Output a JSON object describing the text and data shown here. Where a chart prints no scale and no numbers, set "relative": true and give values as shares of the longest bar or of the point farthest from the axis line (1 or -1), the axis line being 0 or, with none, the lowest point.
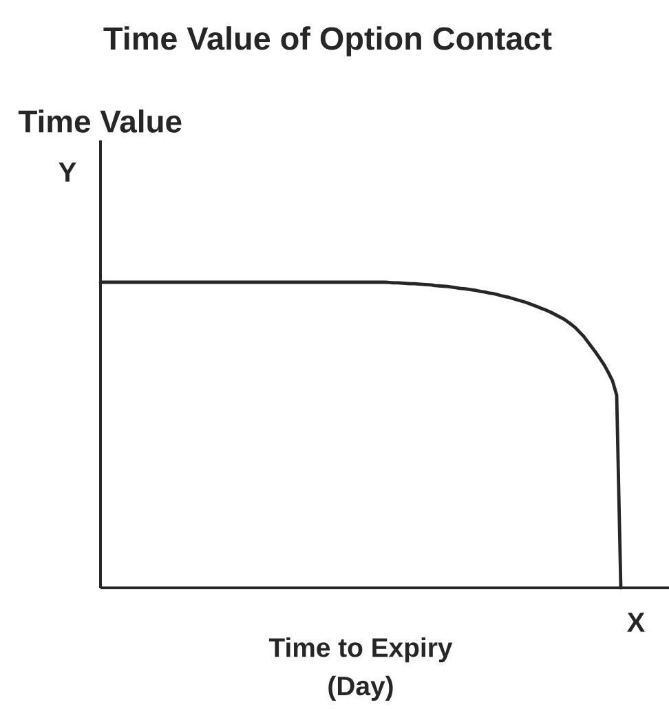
{
  "chart_data": {
    "type": "line",
    "title": "Time Value of Option Contact",
    "xlabel": "Time to Expiry (Day)",
    "annotations": [
      "Time Value",
      "Y",
      "X"
    ],
    "relative": true,
    "categories": [
      null,
      null,
      null,
      null,
      null,
      null,
      null,
      null,
      null,
      null,
      null,
      null,
      null,
      null,
      null,
      null,
      null,
      null,
      null,
      null,
      null,
      null,
      null,
      null,
      null,
      null,
      null,
      null,
      null,
      null,
      null,
      null,
      null,
      null,
      null,
      null,
      null,
      null,
      null,
      null,
      null,
      null,
      null,
      null,
      null,
      null,
      null,
      null,
      null,
      null,
      null,
      null,
      null,
      null,
      null,
      null,
      null,
      null,
      null,
      null,
      null,
      null,
      null,
      null,
      null,
      null,
      null,
      null,
      null,
      null,
      null,
      null,
      null,
      null,
      null,
      null,
      null,
      null,
      null,
      null,
      null,
      null,
      null,
      null,
      null,
      null,
      null,
      null,
      null,
      null,
      null,
      null,
      null,
      null,
      null,
      null,
      null,
      null,
      null,
      null,
      null,
      null,
      null,
      null,
      null,
      null,
      null,
      null,
      null,
      null,
      null,
      null,
      null,
      null,
      null,
      null,
      null,
      null,
      null,
      null,
      null,
      null,
      null,
      null,
      null,
      null,
      null
    ],
    "series": [
      {
        "color": "#262626",
        "values": [
          1,
          1,
          1,
          1,
          1,
          1,
          1,
          1,
          1,
          1,
          1,
          1,
          1,
          1,
          1,
          1,
          1,
          1,
          1,
          1,
          1,
          1,
          1,
          1,
          1,
          1,
          1,
          1,
          1,
          1,
          1,
          1,
          1,
          1,
          1,
          1,
          1,
          1,
          1,
          1,
          1,
          1,
          1,
          1,
          1,
          1,
          1,
          1,
          1,
          1,
          1,
          1,
          1,
          1,
          1,
          1,
          1,
          1,
          1,
          1,
          1,
          1,
          1,
          1,
          1,
          1,
          1,
          1,
          1,
          1,
          0.999,
          0.998,
          0.998,
          0.997,
          0.996,
          0.995,
          0.995,
          0.994,
          0.993,
          0.992,
          0.991,
          0.989,
          0.988,
          0.987,
          0.986,
          0.984,
          0.982,
          0.98,
          0.979,
          0.977,
          0.975,
          0.973,
          0.97,
          0.968,
          0.965,
          0.963,
          0.96,
          0.956,
          0.953,
          0.95,
          0.946,
          0.942,
          0.938,
          0.934,
          0.929,
          0.924,
          0.919,
          0.913,
          0.908,
          0.902,
          0.895,
          0.888,
          0.881,
          0.872,
          0.862,
          0.851,
          0.837,
          0.823,
          0.805,
          0.787,
          0.769,
          0.749,
          0.729,
          0.704,
          0.677,
          0.63,
          0
        ]
      }
    ]
  }
}
